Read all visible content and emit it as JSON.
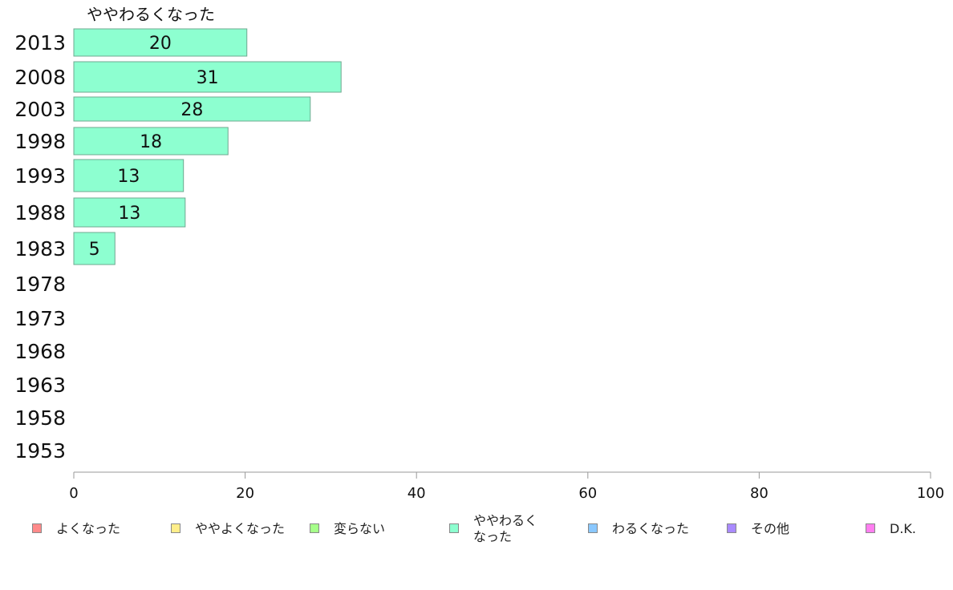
{
  "chart_data": {
    "type": "bar",
    "orientation": "horizontal",
    "title": "ややわるくなった",
    "categories": [
      "2013",
      "2008",
      "2003",
      "1998",
      "1993",
      "1988",
      "1983",
      "1978",
      "1973",
      "1968",
      "1963",
      "1958",
      "1953"
    ],
    "series": [
      {
        "name": "ややわるくなった",
        "color": "#8dffd0",
        "values": [
          20.2,
          31.2,
          27.6,
          18.0,
          12.8,
          13.0,
          4.8,
          null,
          null,
          null,
          null,
          null,
          null
        ],
        "labels": [
          "20",
          "31",
          "28",
          "18",
          "13",
          "13",
          "5",
          "",
          "",
          "",
          "",
          "",
          ""
        ]
      }
    ],
    "xlim": [
      0,
      100
    ],
    "xticks": [
      "0",
      "20",
      "40",
      "60",
      "80",
      "100"
    ],
    "legend": {
      "position": "bottom",
      "items": [
        {
          "label": "よくなった",
          "color": "#ff8a8a"
        },
        {
          "label": "ややよくなった",
          "color": "#ffee8a"
        },
        {
          "label": "変らない",
          "color": "#a6ff8a"
        },
        {
          "label": "ややわるく\nなった",
          "color": "#8dffd0"
        },
        {
          "label": "わるくなった",
          "color": "#8ac8ff"
        },
        {
          "label": "その他",
          "color": "#a98aff"
        },
        {
          "label": "D.K.",
          "color": "#ff7ef0"
        }
      ]
    }
  }
}
